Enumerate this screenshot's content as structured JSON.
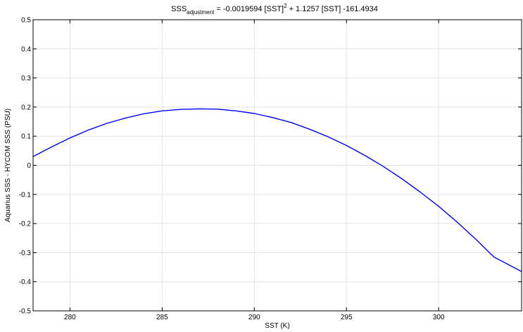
{
  "chart_data": {
    "type": "line",
    "title": {
      "base": "SSS",
      "subscript": "adjustment",
      "part1": " = -0.0019594 [SST]",
      "superscript": "2",
      "part2": " + 1.1257 [SST] -161.4934"
    },
    "xlabel": "SST (K)",
    "ylabel": "Aquarius SSS - HYCOM SSS (PSU)",
    "xlim": [
      278,
      304.5
    ],
    "ylim": [
      -0.5,
      0.5
    ],
    "xticks": [
      280,
      285,
      290,
      295,
      300
    ],
    "xtick_labels": [
      "280",
      "285",
      "290",
      "295",
      "300"
    ],
    "yticks": [
      -0.5,
      -0.4,
      -0.3,
      -0.2,
      -0.1,
      0,
      0.1,
      0.2,
      0.3,
      0.4,
      0.5
    ],
    "ytick_labels": [
      "-0.5",
      "-0.4",
      "-0.3",
      "-0.2",
      "-0.1",
      "0",
      "0.1",
      "0.2",
      "0.3",
      "0.4",
      "0.5"
    ],
    "grid": true,
    "series": [
      {
        "color": "#0000ff",
        "x": [
          278,
          279,
          280,
          281,
          282,
          283,
          284,
          285,
          286,
          287,
          288,
          289,
          290,
          291,
          292,
          293,
          294,
          295,
          296,
          297,
          298,
          299,
          300,
          301,
          302,
          303,
          304.5
        ],
        "y": [
          0.03,
          0.063,
          0.094,
          0.121,
          0.144,
          0.162,
          0.177,
          0.187,
          0.192,
          0.194,
          0.193,
          0.187,
          0.178,
          0.164,
          0.147,
          0.124,
          0.098,
          0.068,
          0.034,
          -0.004,
          -0.046,
          -0.092,
          -0.141,
          -0.195,
          -0.253,
          -0.315,
          -0.365
        ]
      }
    ]
  }
}
